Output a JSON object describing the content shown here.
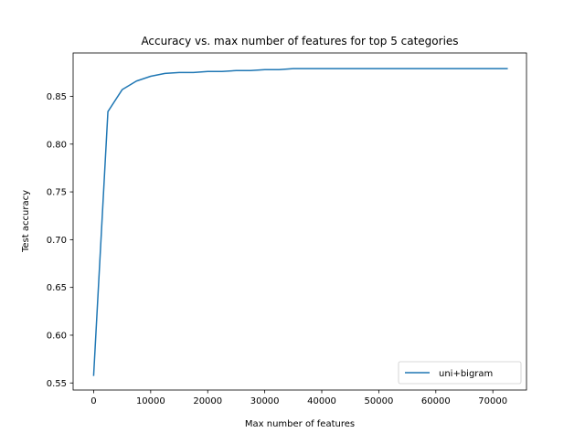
{
  "chart_data": {
    "type": "line",
    "title": "Accuracy vs. max number of features for top 5 categories",
    "xlabel": "Max number of features",
    "ylabel": "Test accuracy",
    "xlim": [
      -3600,
      75900
    ],
    "ylim": [
      0.5426,
      0.8954
    ],
    "xticks": [
      0,
      10000,
      20000,
      30000,
      40000,
      50000,
      60000,
      70000
    ],
    "yticks": [
      0.55,
      0.6,
      0.65,
      0.7,
      0.75,
      0.8,
      0.85
    ],
    "xtick_labels": [
      "0",
      "10000",
      "20000",
      "30000",
      "40000",
      "50000",
      "60000",
      "70000"
    ],
    "ytick_labels": [
      "0.55",
      "0.60",
      "0.65",
      "0.70",
      "0.75",
      "0.80",
      "0.85"
    ],
    "grid": false,
    "legend": {
      "location": "lower-right"
    },
    "series": [
      {
        "name": "uni+bigram",
        "color": "#1f77b4",
        "x": [
          0,
          2500,
          5000,
          7500,
          10000,
          12500,
          15000,
          17500,
          20000,
          22500,
          25000,
          27500,
          30000,
          32500,
          35000,
          37500,
          40000,
          45000,
          50000,
          55000,
          60000,
          65000,
          70000,
          72500
        ],
        "y": [
          0.558,
          0.834,
          0.857,
          0.866,
          0.871,
          0.874,
          0.875,
          0.875,
          0.876,
          0.876,
          0.877,
          0.877,
          0.878,
          0.878,
          0.879,
          0.879,
          0.879,
          0.879,
          0.879,
          0.879,
          0.879,
          0.879,
          0.879,
          0.879
        ]
      }
    ]
  }
}
